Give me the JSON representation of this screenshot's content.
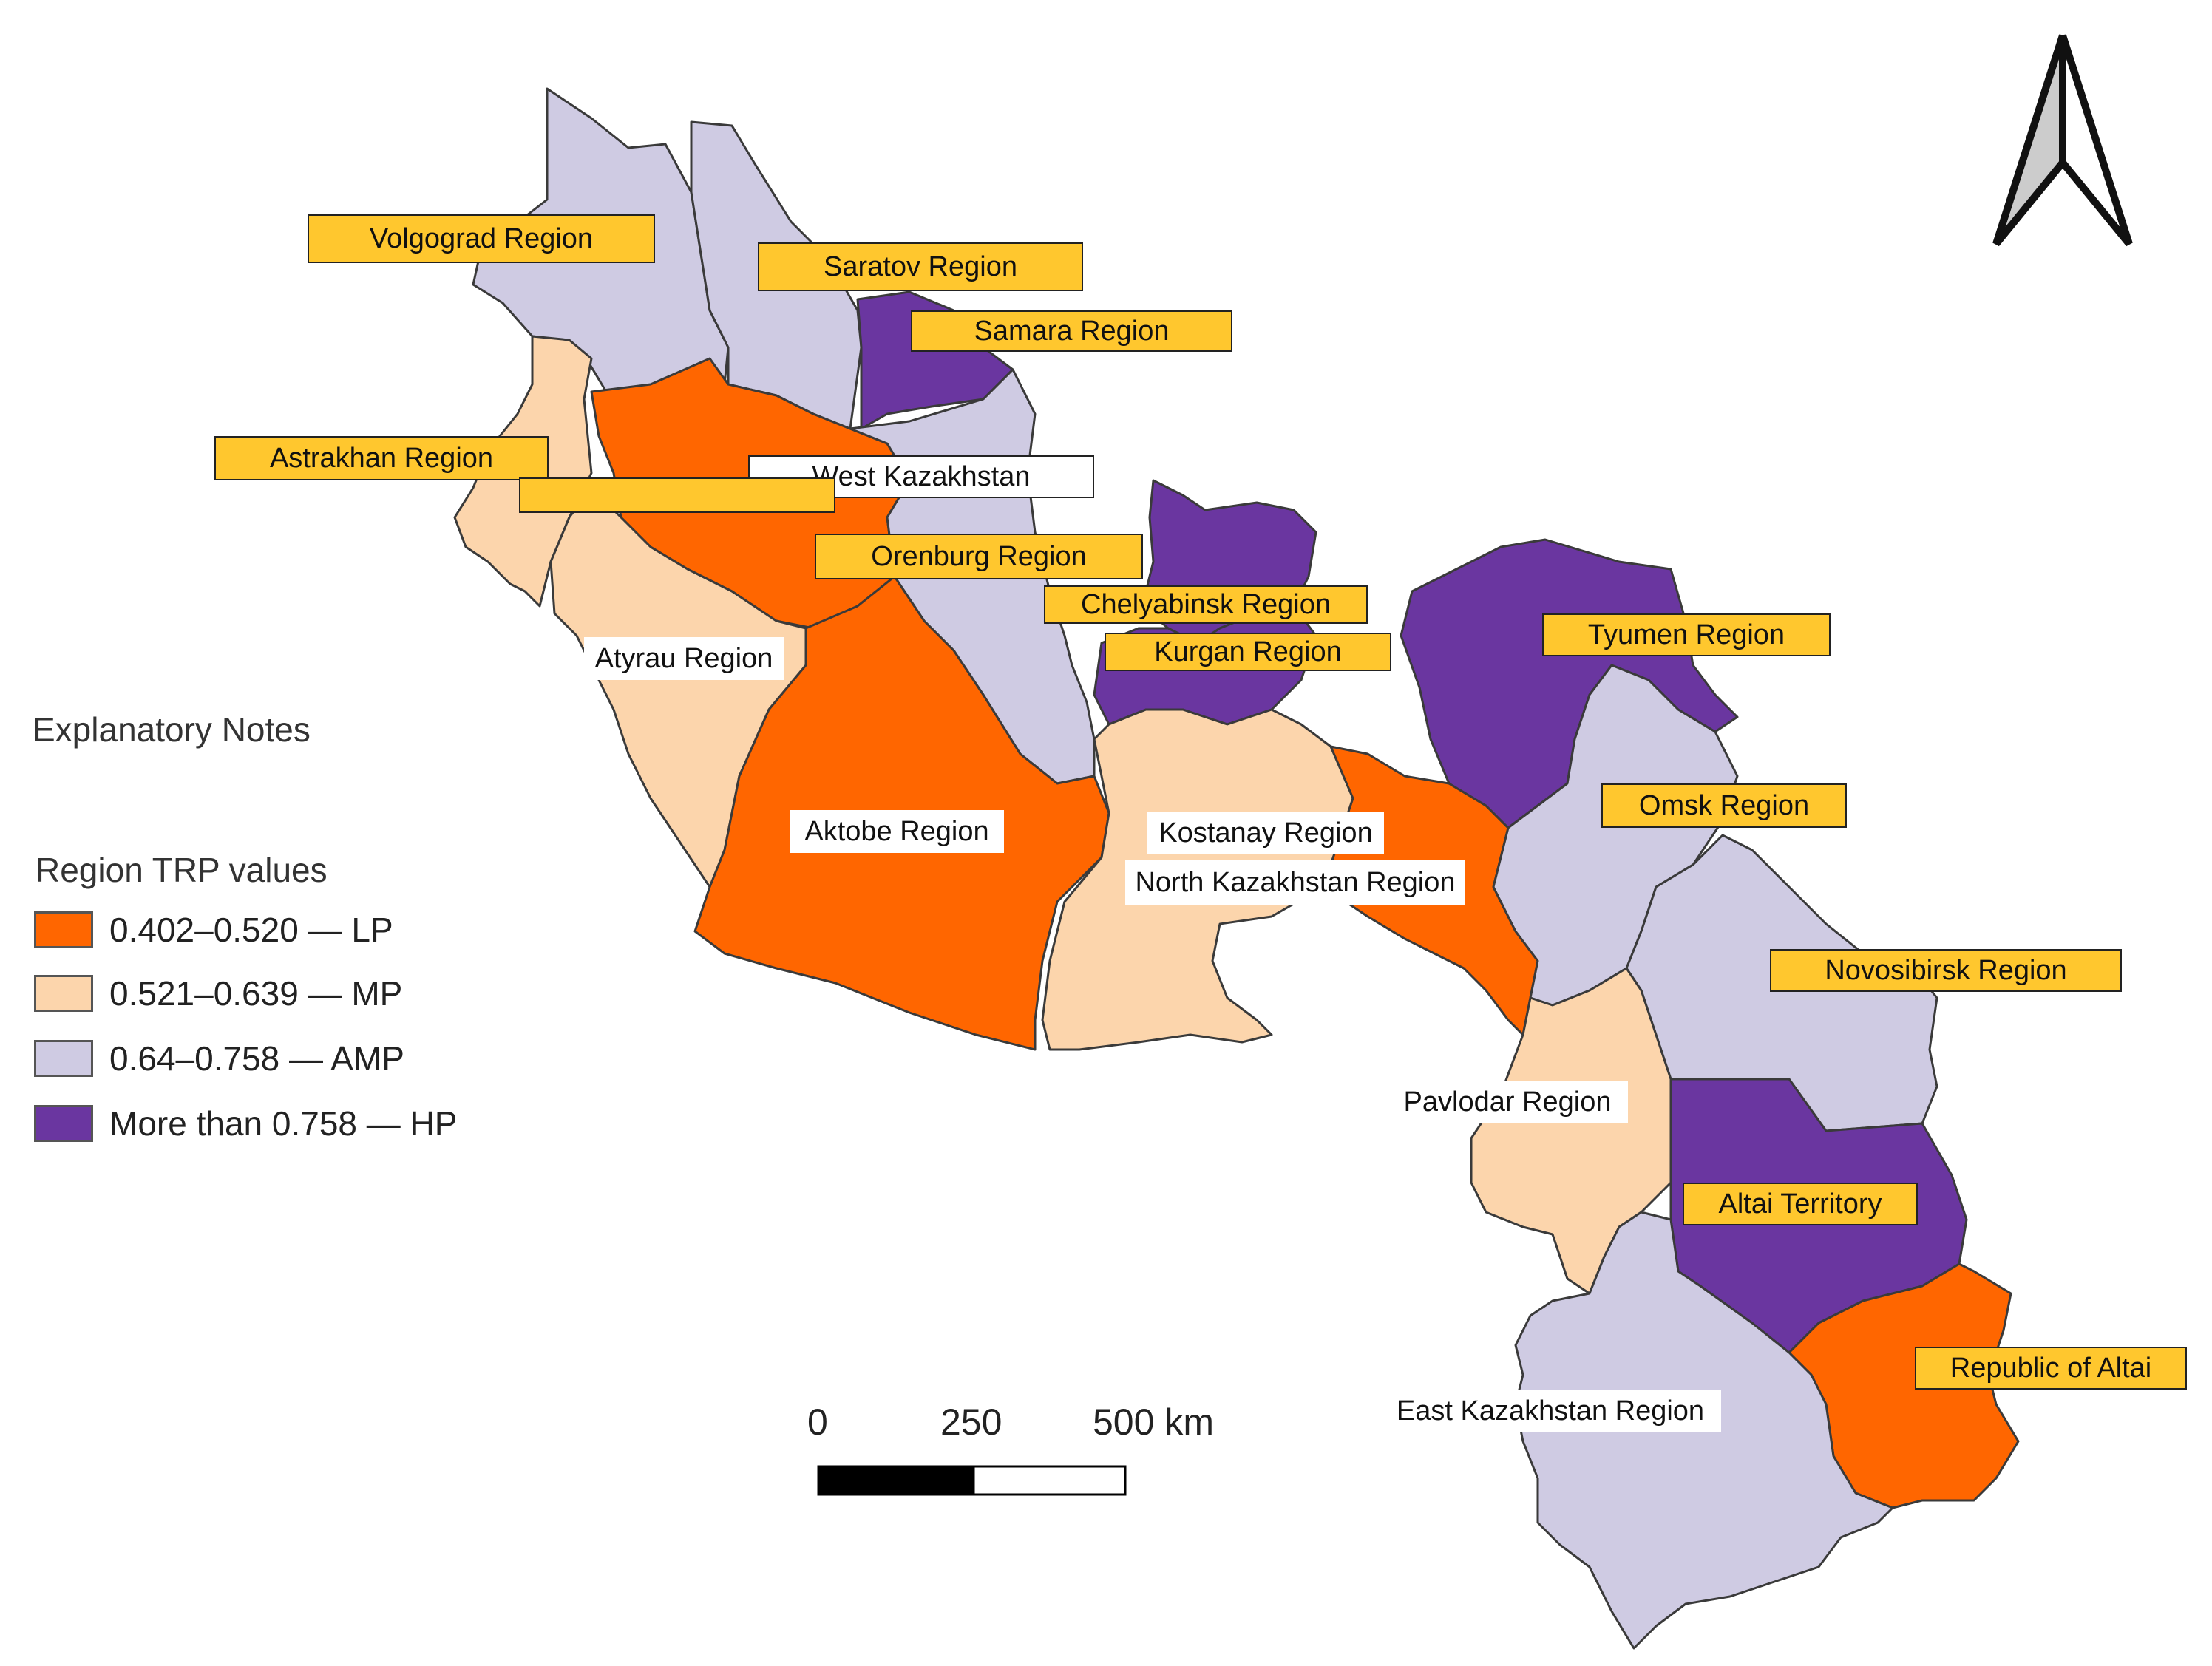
{
  "legend": {
    "notes_title": "Explanatory Notes",
    "values_title": "Region TRP values",
    "classes": [
      {
        "label": "0.402–0.520 — LP",
        "color": "#ff6600"
      },
      {
        "label": "0.521–0.639 — MP",
        "color": "#fcd5ac"
      },
      {
        "label": "0.64–0.758 — AMP",
        "color": "#cfcbe3"
      },
      {
        "label": "More than 0.758 — HP",
        "color": "#6a36a0"
      }
    ]
  },
  "scale": {
    "ticks": [
      "0",
      "250",
      "500 km"
    ]
  },
  "north_arrow": "north-arrow-icon",
  "regions": [
    {
      "name": "Volgograd Region",
      "class": "AMP"
    },
    {
      "name": "Saratov Region",
      "class": "AMP"
    },
    {
      "name": "Samara Region",
      "class": "HP"
    },
    {
      "name": "Astrakhan Region",
      "class": "MP"
    },
    {
      "name": "West Kazakhstan",
      "class": "LP"
    },
    {
      "name": "",
      "class": ""
    },
    {
      "name": "Orenburg Region",
      "class": "AMP"
    },
    {
      "name": "Chelyabinsk Region",
      "class": "HP"
    },
    {
      "name": "Kurgan Region",
      "class": "HP"
    },
    {
      "name": "Atyrau Region",
      "class": "MP"
    },
    {
      "name": "Tyumen Region",
      "class": "HP"
    },
    {
      "name": "Aktobe Region",
      "class": "LP"
    },
    {
      "name": "Kostanay Region",
      "class": "MP"
    },
    {
      "name": "North Kazakhstan Region",
      "class": "LP"
    },
    {
      "name": "Omsk Region",
      "class": "AMP"
    },
    {
      "name": "Novosibirsk Region",
      "class": "AMP"
    },
    {
      "name": "Pavlodar Region",
      "class": "MP"
    },
    {
      "name": "Altai Territory",
      "class": "HP"
    },
    {
      "name": "Republic of Altai",
      "class": "LP"
    },
    {
      "name": "East Kazakhstan Region",
      "class": "AMP"
    }
  ]
}
